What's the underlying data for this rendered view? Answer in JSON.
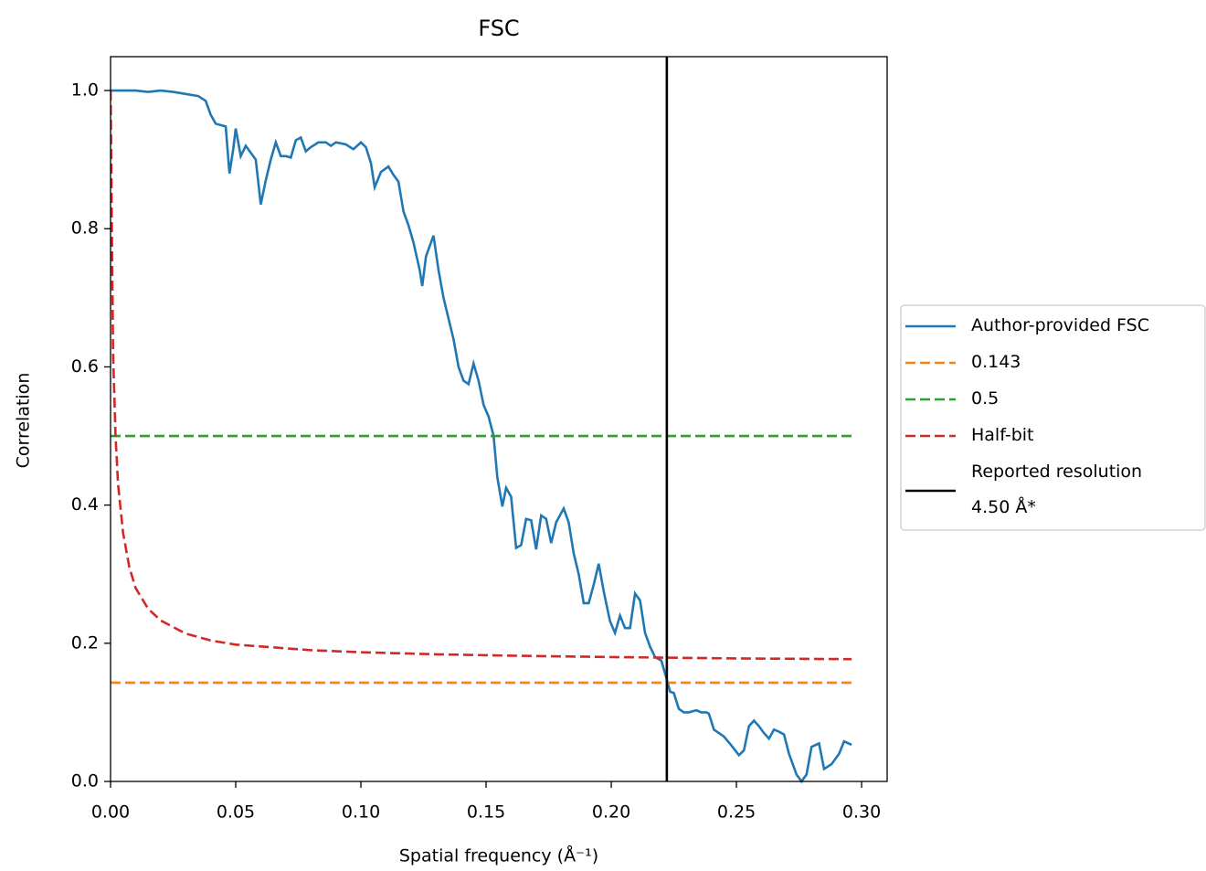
{
  "chart_data": {
    "type": "line",
    "title": "FSC",
    "x_label": "Spatial frequency (Å⁻¹)",
    "y_label": "Correlation",
    "xlim": [
      0,
      0.3102
    ],
    "ylim": [
      0,
      1.049
    ],
    "xticks": [
      {
        "value": 0,
        "label": "0.00"
      },
      {
        "value": 0.05,
        "label": "0.05"
      },
      {
        "value": 0.1,
        "label": "0.10"
      },
      {
        "value": 0.15,
        "label": "0.15"
      },
      {
        "value": 0.2,
        "label": "0.20"
      },
      {
        "value": 0.25,
        "label": "0.25"
      },
      {
        "value": 0.3,
        "label": "0.30"
      }
    ],
    "yticks": [
      {
        "value": 0,
        "label": "0.0"
      },
      0.2,
      0.4,
      0.6,
      0.8,
      {
        "value": 1,
        "label": "1.0"
      }
    ],
    "legend": "outside right",
    "series": [
      {
        "name": "Author-provided FSC",
        "color": "#1f77b4",
        "dashed": false,
        "x": [
          0,
          0.01,
          0.015,
          0.02,
          0.025,
          0.03,
          0.035,
          0.038,
          0.04,
          0.042,
          0.044,
          0.046,
          0.0475,
          0.049,
          0.05,
          0.052,
          0.054,
          0.056,
          0.058,
          0.06,
          0.062,
          0.064,
          0.066,
          0.068,
          0.07,
          0.072,
          0.074,
          0.076,
          0.078,
          0.08,
          0.083,
          0.086,
          0.088,
          0.09,
          0.094,
          0.097,
          0.1,
          0.102,
          0.104,
          0.1055,
          0.108,
          0.111,
          0.113,
          0.115,
          0.117,
          0.119,
          0.121,
          0.1235,
          0.1245,
          0.126,
          0.129,
          0.131,
          0.133,
          0.135,
          0.137,
          0.139,
          0.141,
          0.143,
          0.145,
          0.147,
          0.149,
          0.151,
          0.153,
          0.1545,
          0.1565,
          0.158,
          0.16,
          0.162,
          0.164,
          0.166,
          0.168,
          0.17,
          0.172,
          0.174,
          0.176,
          0.178,
          0.181,
          0.183,
          0.185,
          0.187,
          0.189,
          0.191,
          0.193,
          0.195,
          0.197,
          0.1995,
          0.2015,
          0.2035,
          0.2055,
          0.2075,
          0.2095,
          0.2115,
          0.2135,
          0.2155,
          0.2175,
          0.22,
          0.222,
          0.2235,
          0.225,
          0.227,
          0.229,
          0.231,
          0.234,
          0.236,
          0.238,
          0.239,
          0.241,
          0.243,
          0.245,
          0.248,
          0.251,
          0.253,
          0.255,
          0.257,
          0.259,
          0.261,
          0.263,
          0.265,
          0.267,
          0.269,
          0.271,
          0.274,
          0.276,
          0.278,
          0.28,
          0.283,
          0.285,
          0.288,
          0.291,
          0.293,
          0.296
        ],
        "values": [
          1.0,
          1.0,
          0.998,
          1.0,
          0.998,
          0.995,
          0.992,
          0.985,
          0.965,
          0.952,
          0.95,
          0.948,
          0.88,
          0.915,
          0.945,
          0.905,
          0.92,
          0.91,
          0.9,
          0.835,
          0.87,
          0.9,
          0.925,
          0.905,
          0.905,
          0.903,
          0.928,
          0.932,
          0.912,
          0.918,
          0.925,
          0.925,
          0.92,
          0.925,
          0.922,
          0.915,
          0.925,
          0.918,
          0.895,
          0.86,
          0.882,
          0.89,
          0.878,
          0.868,
          0.825,
          0.805,
          0.78,
          0.74,
          0.717,
          0.76,
          0.79,
          0.74,
          0.7,
          0.67,
          0.64,
          0.6,
          0.58,
          0.575,
          0.605,
          0.58,
          0.545,
          0.528,
          0.5,
          0.44,
          0.398,
          0.425,
          0.412,
          0.338,
          0.342,
          0.38,
          0.378,
          0.336,
          0.385,
          0.38,
          0.345,
          0.375,
          0.395,
          0.375,
          0.33,
          0.3,
          0.258,
          0.258,
          0.285,
          0.315,
          0.275,
          0.232,
          0.215,
          0.24,
          0.222,
          0.222,
          0.272,
          0.262,
          0.215,
          0.195,
          0.18,
          0.175,
          0.15,
          0.13,
          0.128,
          0.105,
          0.1,
          0.1,
          0.103,
          0.1,
          0.1,
          0.098,
          0.075,
          0.07,
          0.065,
          0.052,
          0.038,
          0.045,
          0.08,
          0.088,
          0.08,
          0.07,
          0.062,
          0.075,
          0.072,
          0.068,
          0.04,
          0.01,
          0.0,
          0.01,
          0.05,
          0.055,
          0.018,
          0.025,
          0.04,
          0.058,
          0.053
        ]
      },
      {
        "name": "0.143",
        "color": "#ff7f0e",
        "dashed": true,
        "x": [
          0,
          0.296
        ],
        "values": [
          0.143,
          0.143
        ]
      },
      {
        "name": "0.5",
        "color": "#2ca02c",
        "dashed": true,
        "x": [
          0,
          0.296
        ],
        "values": [
          0.5,
          0.5
        ]
      },
      {
        "name": "Half-bit",
        "color": "#d62728",
        "dashed": true,
        "x": [
          0,
          0.001,
          0.002,
          0.003,
          0.005,
          0.0075,
          0.01,
          0.015,
          0.02,
          0.03,
          0.04,
          0.05,
          0.065,
          0.08,
          0.1,
          0.13,
          0.16,
          0.2,
          0.25,
          0.296
        ],
        "values": [
          1.0,
          0.62,
          0.5,
          0.43,
          0.36,
          0.31,
          0.28,
          0.25,
          0.233,
          0.214,
          0.204,
          0.198,
          0.194,
          0.19,
          0.187,
          0.184,
          0.182,
          0.18,
          0.178,
          0.177
        ]
      }
    ],
    "vertical_lines": [
      {
        "name": "Reported resolution\n 4.50 Å*",
        "color": "#000000",
        "x": 0.2222
      }
    ]
  }
}
